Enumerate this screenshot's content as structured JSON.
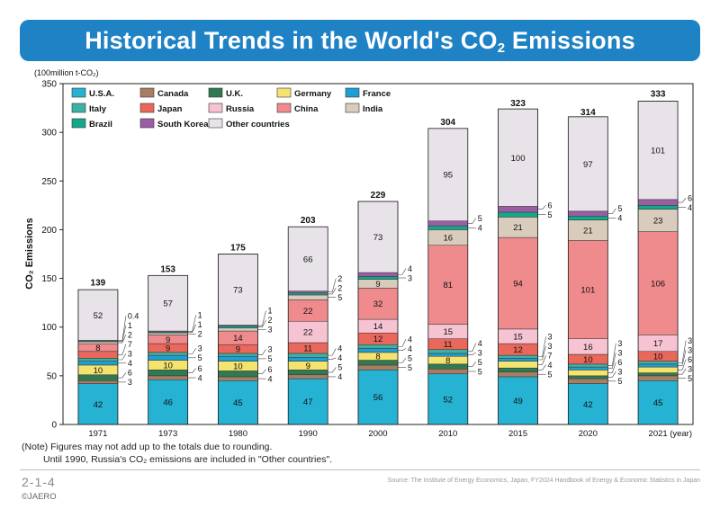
{
  "title": {
    "main": "Historical Trends in the World's CO",
    "sub": "2",
    "tail": " Emissions"
  },
  "colors": {
    "banner": "#1f82c5"
  },
  "chart_data": {
    "type": "bar",
    "stacked": true,
    "unit_label": "(100million t-CO₂)",
    "ylabel": "CO₂ Emissions",
    "ylim": [
      0,
      350
    ],
    "yticks": [
      0,
      50,
      100,
      150,
      200,
      250,
      300,
      350
    ],
    "x_unit": "(year)",
    "categories": [
      "1971",
      "1973",
      "1980",
      "1990",
      "2000",
      "2010",
      "2015",
      "2020",
      "2021"
    ],
    "totals": [
      139,
      153,
      175,
      203,
      229,
      304,
      323,
      314,
      333
    ],
    "series": [
      {
        "name": "U.S.A.",
        "color": "#25b2d3",
        "values": [
          42,
          46,
          45,
          47,
          56,
          52,
          49,
          42,
          45
        ]
      },
      {
        "name": "Canada",
        "color": "#a77e62",
        "values": [
          3,
          4,
          4,
          4,
          5,
          5,
          5,
          5,
          5
        ]
      },
      {
        "name": "U.K.",
        "color": "#2f7a52",
        "values": [
          6,
          6,
          6,
          5,
          5,
          5,
          4,
          3,
          3
        ]
      },
      {
        "name": "Germany",
        "color": "#f4e36e",
        "values": [
          10,
          10,
          10,
          9,
          8,
          8,
          7,
          6,
          6
        ]
      },
      {
        "name": "France",
        "color": "#1e9fd1",
        "values": [
          4,
          5,
          5,
          4,
          4,
          3,
          3,
          3,
          3
        ]
      },
      {
        "name": "Italy",
        "color": "#3fb1a3",
        "values": [
          3,
          3,
          3,
          4,
          4,
          4,
          3,
          3,
          3
        ]
      },
      {
        "name": "Japan",
        "color": "#e9685b",
        "values": [
          7,
          9,
          9,
          11,
          12,
          11,
          12,
          10,
          10
        ]
      },
      {
        "name": "Russia",
        "color": "#f6c3d3",
        "values": [
          null,
          null,
          null,
          22,
          14,
          15,
          15,
          16,
          17
        ]
      },
      {
        "name": "China",
        "color": "#ef8a8d",
        "values": [
          8,
          9,
          14,
          22,
          32,
          81,
          94,
          101,
          106
        ]
      },
      {
        "name": "India",
        "color": "#d9ccbd",
        "values": [
          2,
          2,
          3,
          5,
          9,
          16,
          21,
          21,
          23
        ]
      },
      {
        "name": "Brazil",
        "color": "#14a88a",
        "values": [
          1,
          1,
          2,
          2,
          3,
          4,
          5,
          4,
          4
        ]
      },
      {
        "name": "South Korea",
        "color": "#9b5ea4",
        "values": [
          0.4,
          1,
          1,
          2,
          4,
          5,
          6,
          5,
          6
        ]
      },
      {
        "name": "Other countries",
        "color": "#e8e3e9",
        "values": [
          52,
          57,
          73,
          66,
          73,
          95,
          100,
          97,
          101
        ]
      }
    ]
  },
  "notes": {
    "line1": "(Note) Figures may not add up to the totals due to rounding.",
    "line2": "Until 1990, Russia's CO₂ emissions are included in \"Other countries\"."
  },
  "footer": {
    "page": "2-1-4",
    "brand": "©JAERO",
    "source": "Source: The Institute of Energy Economics, Japan, FY2024 Handbook of Energy & Economic Statistics in Japan"
  }
}
